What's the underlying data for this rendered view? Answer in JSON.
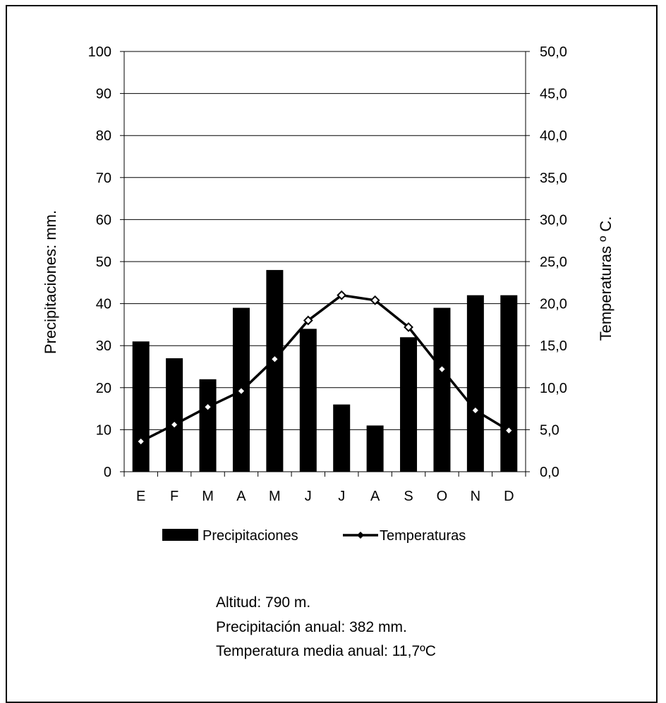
{
  "chart_data": {
    "type": "bar+line",
    "categories": [
      "E",
      "F",
      "M",
      "A",
      "M",
      "J",
      "J",
      "A",
      "S",
      "O",
      "N",
      "D"
    ],
    "series": [
      {
        "name": "Precipitaciones",
        "type": "bar",
        "axis": "left",
        "values": [
          31,
          27,
          22,
          39,
          48,
          34,
          16,
          11,
          32,
          39,
          42,
          42
        ]
      },
      {
        "name": "Temperaturas",
        "type": "line",
        "axis": "right",
        "values": [
          3.6,
          5.6,
          7.7,
          9.6,
          13.4,
          18.0,
          21.0,
          20.4,
          17.2,
          12.2,
          7.3,
          4.9
        ]
      }
    ],
    "ylabel": "Precipitaciones: mm.",
    "y2label": "Temperaturas º C.",
    "ylim": [
      0,
      100
    ],
    "y2lim": [
      0,
      50
    ],
    "yticks": [
      "0",
      "10",
      "20",
      "30",
      "40",
      "50",
      "60",
      "70",
      "80",
      "90",
      "100"
    ],
    "y2ticks": [
      "0,0",
      "5,0",
      "10,0",
      "15,0",
      "20,0",
      "25,0",
      "30,0",
      "35,0",
      "40,0",
      "45,0",
      "50,0"
    ],
    "grid": true,
    "legend_position": "bottom",
    "colors": {
      "bar": "#000000",
      "line": "#000000",
      "marker_fill": "#ffffff"
    }
  },
  "info": {
    "altitude": "Altitud: 790 m.",
    "precipitation": "Precipitación anual: 382 mm.",
    "temperature": "Temperatura media anual: 11,7ºC"
  }
}
